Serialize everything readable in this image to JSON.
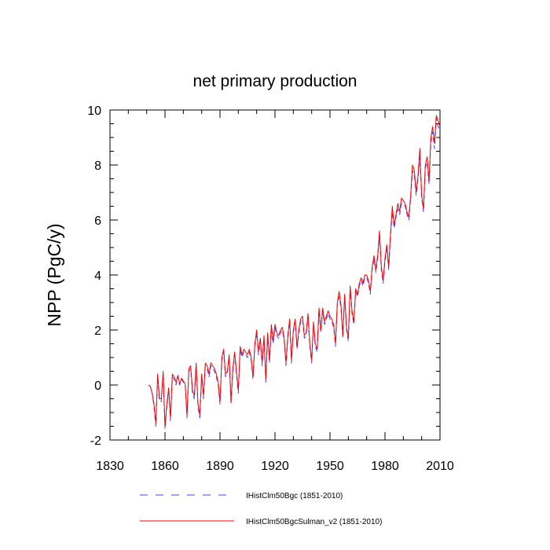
{
  "chart_data": {
    "type": "line",
    "title": "net primary production",
    "xlabel": "",
    "ylabel": "NPP  (PgC/y)",
    "xlim": [
      1830,
      2010
    ],
    "ylim": [
      -2,
      10
    ],
    "x_ticks": [
      1830,
      1860,
      1890,
      1920,
      1950,
      1980,
      2010
    ],
    "y_ticks": [
      -2,
      0,
      2,
      4,
      6,
      8,
      10
    ],
    "x_start": 1851,
    "x_step": 1,
    "legend_position": "bottom",
    "grid": false,
    "series": [
      {
        "name": "IHistClm50Bgc (1851-2010)",
        "color": "#4040ff",
        "dash": "dashed",
        "values": [
          0,
          -0.05,
          -0.3,
          -0.8,
          -1.5,
          0.3,
          -0.6,
          -0.6,
          0.4,
          -1.6,
          -0.8,
          -0.2,
          -1.3,
          0.3,
          0.2,
          0.0,
          0.3,
          0.0,
          0.2,
          0.1,
          0.0,
          -1.2,
          0.5,
          0.6,
          -0.3,
          -0.5,
          0.7,
          -0.8,
          -1.2,
          0.3,
          -0.5,
          0.7,
          0.6,
          0.3,
          0.7,
          0.6,
          0.5,
          0.3,
          0.0,
          -0.7,
          0.9,
          1.2,
          0.3,
          0.4,
          1.0,
          -0.7,
          0.5,
          1.1,
          0.4,
          -0.3,
          1.3,
          1.0,
          1.2,
          1.1,
          1.0,
          1.2,
          0.9,
          0.2,
          1.4,
          1.9,
          1.1,
          1.6,
          0.7,
          1.7,
          0.1,
          1.8,
          0.8,
          2.0,
          1.5,
          2.1,
          1.8,
          1.7,
          1.9,
          2.0,
          1.6,
          0.7,
          1.7,
          2.3,
          0.8,
          1.9,
          2.3,
          1.3,
          1.9,
          2.3,
          2.4,
          1.7,
          1.8,
          2.5,
          1.4,
          0.8,
          2.2,
          1.4,
          1.2,
          2.7,
          1.9,
          2.7,
          2.2,
          2.4,
          2.6,
          2.4,
          2.3,
          2.1,
          1.4,
          2.9,
          3.2,
          2.8,
          1.7,
          3.2,
          2.0,
          1.6,
          3.5,
          2.6,
          2.2,
          3.4,
          3.2,
          3.6,
          3.8,
          3.6,
          3.9,
          3.9,
          3.7,
          3.3,
          4.2,
          4.6,
          4.1,
          4.6,
          5.4,
          4.2,
          3.7,
          4.5,
          5.0,
          4.2,
          5.4,
          6.3,
          5.7,
          6.1,
          6.4,
          6.2,
          6.6,
          6.6,
          6.5,
          6.2,
          6.0,
          6.8,
          7.8,
          7.6,
          6.9,
          7.5,
          8.3,
          6.8,
          6.3,
          7.9,
          8.1,
          7.3,
          8.8,
          9.2,
          8.6,
          9.7,
          9.4,
          9.3
        ]
      },
      {
        "name": "IHistClm50BgcSulman_v2 (1851-2010)",
        "color": "#ff0000",
        "dash": "solid",
        "values": [
          0,
          -0.05,
          -0.3,
          -0.7,
          -1.4,
          0.4,
          -0.5,
          -0.5,
          0.5,
          -1.5,
          -0.7,
          -0.1,
          -1.2,
          0.4,
          0.3,
          0.1,
          0.35,
          0.05,
          0.25,
          0.15,
          0.05,
          -1.1,
          0.6,
          0.7,
          -0.2,
          -0.4,
          0.8,
          -0.7,
          -1.1,
          0.4,
          -0.4,
          0.8,
          0.7,
          0.4,
          0.8,
          0.7,
          0.6,
          0.4,
          0.1,
          -0.6,
          1.0,
          1.3,
          0.4,
          0.5,
          1.1,
          -0.6,
          0.6,
          1.2,
          0.5,
          -0.2,
          1.4,
          1.1,
          1.3,
          1.2,
          1.1,
          1.3,
          1.0,
          0.3,
          1.5,
          2.0,
          1.2,
          1.7,
          0.8,
          1.8,
          0.2,
          1.9,
          0.9,
          2.2,
          1.6,
          2.2,
          1.9,
          1.8,
          2.0,
          2.1,
          1.7,
          0.8,
          1.8,
          2.4,
          0.9,
          2.0,
          2.4,
          1.4,
          2.0,
          2.4,
          2.5,
          1.8,
          1.9,
          2.6,
          1.5,
          0.9,
          2.3,
          1.5,
          1.3,
          2.8,
          2.0,
          2.8,
          2.3,
          2.5,
          2.7,
          2.5,
          2.4,
          2.2,
          1.5,
          3.0,
          3.4,
          2.9,
          1.8,
          3.3,
          2.1,
          1.7,
          3.6,
          2.7,
          2.3,
          3.5,
          3.3,
          3.7,
          3.9,
          3.7,
          4.0,
          4.0,
          3.8,
          3.4,
          4.3,
          4.7,
          4.2,
          4.7,
          5.6,
          4.3,
          3.8,
          4.6,
          5.1,
          4.3,
          5.5,
          6.5,
          5.8,
          6.2,
          6.6,
          6.3,
          6.8,
          6.7,
          6.6,
          6.3,
          6.1,
          6.9,
          8.0,
          7.8,
          7.0,
          7.6,
          8.6,
          6.9,
          6.4,
          8.0,
          8.3,
          7.4,
          9.0,
          9.4,
          8.8,
          9.8,
          9.6,
          9.4
        ]
      }
    ]
  }
}
